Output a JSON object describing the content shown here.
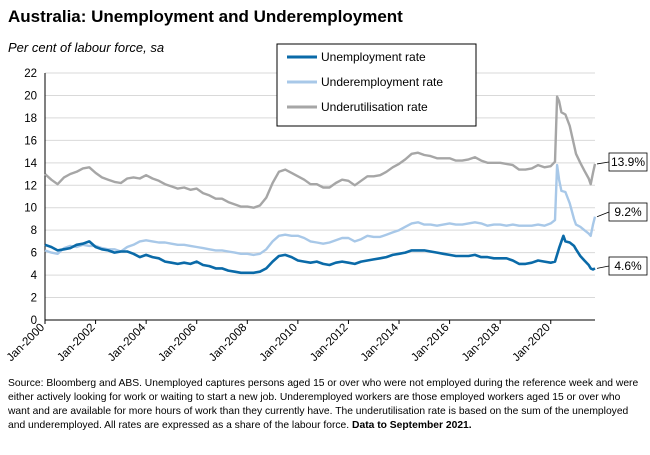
{
  "title": "Australia: Unemployment and Underemployment",
  "subtitle": "Per cent of labour force, sa",
  "source_text": "Source: Bloomberg and ABS. Unemployed captures persons aged 15 or over who were not employed during the reference week and were either actively looking for work or waiting to start a new job.  Underemployed workers are those employed workers aged 15 or over who want and are available for more hours of work than they currently have.  The underutilisation rate is based on the sum of the unemployed and underemployed. All rates are expressed as a share of the labour force.",
  "source_bold": "Data to September 2021.",
  "chart_data": {
    "type": "line",
    "title": "Australia: Unemployment and Underemployment",
    "ylabel": "Per cent of labour force, sa",
    "ylim": [
      0,
      22
    ],
    "yticks": [
      "0",
      "2",
      "4",
      "6",
      "8",
      "10",
      "12",
      "14",
      "16",
      "18",
      "20",
      "22"
    ],
    "xlim": [
      2000.0,
      2021.75
    ],
    "xticks": [
      {
        "x": 2000,
        "label": "Jan-2000"
      },
      {
        "x": 2002,
        "label": "Jan-2002"
      },
      {
        "x": 2004,
        "label": "Jan-2004"
      },
      {
        "x": 2006,
        "label": "Jan-2006"
      },
      {
        "x": 2008,
        "label": "Jan-2008"
      },
      {
        "x": 2010,
        "label": "Jan-2010"
      },
      {
        "x": 2012,
        "label": "Jan-2012"
      },
      {
        "x": 2014,
        "label": "Jan-2014"
      },
      {
        "x": 2016,
        "label": "Jan-2016"
      },
      {
        "x": 2018,
        "label": "Jan-2018"
      },
      {
        "x": 2020,
        "label": "Jan-2020"
      }
    ],
    "grid": true,
    "legend": "top-center",
    "series": [
      {
        "name": "Unemployment rate",
        "color": "#0a6aa8",
        "end_label": "4.6%",
        "points": [
          [
            2000.0,
            6.7
          ],
          [
            2000.25,
            6.5
          ],
          [
            2000.5,
            6.2
          ],
          [
            2000.75,
            6.3
          ],
          [
            2001.0,
            6.4
          ],
          [
            2001.25,
            6.7
          ],
          [
            2001.5,
            6.8
          ],
          [
            2001.75,
            7.0
          ],
          [
            2002.0,
            6.5
          ],
          [
            2002.25,
            6.3
          ],
          [
            2002.5,
            6.2
          ],
          [
            2002.75,
            6.0
          ],
          [
            2003.0,
            6.1
          ],
          [
            2003.25,
            6.1
          ],
          [
            2003.5,
            5.9
          ],
          [
            2003.75,
            5.6
          ],
          [
            2004.0,
            5.8
          ],
          [
            2004.25,
            5.6
          ],
          [
            2004.5,
            5.5
          ],
          [
            2004.75,
            5.2
          ],
          [
            2005.0,
            5.1
          ],
          [
            2005.25,
            5.0
          ],
          [
            2005.5,
            5.1
          ],
          [
            2005.75,
            5.0
          ],
          [
            2006.0,
            5.2
          ],
          [
            2006.25,
            4.9
          ],
          [
            2006.5,
            4.8
          ],
          [
            2006.75,
            4.6
          ],
          [
            2007.0,
            4.6
          ],
          [
            2007.25,
            4.4
          ],
          [
            2007.5,
            4.3
          ],
          [
            2007.75,
            4.2
          ],
          [
            2008.0,
            4.2
          ],
          [
            2008.25,
            4.2
          ],
          [
            2008.5,
            4.3
          ],
          [
            2008.75,
            4.6
          ],
          [
            2009.0,
            5.2
          ],
          [
            2009.25,
            5.7
          ],
          [
            2009.5,
            5.8
          ],
          [
            2009.75,
            5.6
          ],
          [
            2010.0,
            5.3
          ],
          [
            2010.25,
            5.2
          ],
          [
            2010.5,
            5.1
          ],
          [
            2010.75,
            5.2
          ],
          [
            2011.0,
            5.0
          ],
          [
            2011.25,
            4.9
          ],
          [
            2011.5,
            5.1
          ],
          [
            2011.75,
            5.2
          ],
          [
            2012.0,
            5.1
          ],
          [
            2012.25,
            5.0
          ],
          [
            2012.5,
            5.2
          ],
          [
            2012.75,
            5.3
          ],
          [
            2013.0,
            5.4
          ],
          [
            2013.25,
            5.5
          ],
          [
            2013.5,
            5.6
          ],
          [
            2013.75,
            5.8
          ],
          [
            2014.0,
            5.9
          ],
          [
            2014.25,
            6.0
          ],
          [
            2014.5,
            6.2
          ],
          [
            2014.75,
            6.2
          ],
          [
            2015.0,
            6.2
          ],
          [
            2015.25,
            6.1
          ],
          [
            2015.5,
            6.0
          ],
          [
            2015.75,
            5.9
          ],
          [
            2016.0,
            5.8
          ],
          [
            2016.25,
            5.7
          ],
          [
            2016.5,
            5.7
          ],
          [
            2016.75,
            5.7
          ],
          [
            2017.0,
            5.8
          ],
          [
            2017.25,
            5.6
          ],
          [
            2017.5,
            5.6
          ],
          [
            2017.75,
            5.5
          ],
          [
            2018.0,
            5.5
          ],
          [
            2018.25,
            5.5
          ],
          [
            2018.5,
            5.3
          ],
          [
            2018.75,
            5.0
          ],
          [
            2019.0,
            5.0
          ],
          [
            2019.25,
            5.1
          ],
          [
            2019.5,
            5.3
          ],
          [
            2019.75,
            5.2
          ],
          [
            2020.0,
            5.1
          ],
          [
            2020.17,
            5.2
          ],
          [
            2020.33,
            6.4
          ],
          [
            2020.42,
            7.0
          ],
          [
            2020.5,
            7.5
          ],
          [
            2020.58,
            7.0
          ],
          [
            2020.75,
            6.9
          ],
          [
            2020.92,
            6.6
          ],
          [
            2021.0,
            6.3
          ],
          [
            2021.17,
            5.7
          ],
          [
            2021.33,
            5.3
          ],
          [
            2021.5,
            4.9
          ],
          [
            2021.58,
            4.6
          ],
          [
            2021.67,
            4.5
          ],
          [
            2021.75,
            4.6
          ]
        ]
      },
      {
        "name": "Underemployment rate",
        "color": "#a8c8e8",
        "end_label": "9.2%",
        "points": [
          [
            2000.0,
            6.2
          ],
          [
            2000.25,
            6.0
          ],
          [
            2000.5,
            5.9
          ],
          [
            2000.75,
            6.4
          ],
          [
            2001.0,
            6.6
          ],
          [
            2001.25,
            6.5
          ],
          [
            2001.5,
            6.7
          ],
          [
            2001.75,
            6.6
          ],
          [
            2002.0,
            6.6
          ],
          [
            2002.25,
            6.4
          ],
          [
            2002.5,
            6.3
          ],
          [
            2002.75,
            6.3
          ],
          [
            2003.0,
            6.1
          ],
          [
            2003.25,
            6.5
          ],
          [
            2003.5,
            6.7
          ],
          [
            2003.75,
            7.0
          ],
          [
            2004.0,
            7.1
          ],
          [
            2004.25,
            7.0
          ],
          [
            2004.5,
            6.9
          ],
          [
            2004.75,
            6.9
          ],
          [
            2005.0,
            6.8
          ],
          [
            2005.25,
            6.7
          ],
          [
            2005.5,
            6.7
          ],
          [
            2005.75,
            6.6
          ],
          [
            2006.0,
            6.5
          ],
          [
            2006.25,
            6.4
          ],
          [
            2006.5,
            6.3
          ],
          [
            2006.75,
            6.2
          ],
          [
            2007.0,
            6.2
          ],
          [
            2007.25,
            6.1
          ],
          [
            2007.5,
            6.0
          ],
          [
            2007.75,
            5.9
          ],
          [
            2008.0,
            5.9
          ],
          [
            2008.25,
            5.8
          ],
          [
            2008.5,
            5.9
          ],
          [
            2008.75,
            6.3
          ],
          [
            2009.0,
            7.0
          ],
          [
            2009.25,
            7.5
          ],
          [
            2009.5,
            7.6
          ],
          [
            2009.75,
            7.5
          ],
          [
            2010.0,
            7.5
          ],
          [
            2010.25,
            7.3
          ],
          [
            2010.5,
            7.0
          ],
          [
            2010.75,
            6.9
          ],
          [
            2011.0,
            6.8
          ],
          [
            2011.25,
            6.9
          ],
          [
            2011.5,
            7.1
          ],
          [
            2011.75,
            7.3
          ],
          [
            2012.0,
            7.3
          ],
          [
            2012.25,
            7.0
          ],
          [
            2012.5,
            7.2
          ],
          [
            2012.75,
            7.5
          ],
          [
            2013.0,
            7.4
          ],
          [
            2013.25,
            7.4
          ],
          [
            2013.5,
            7.6
          ],
          [
            2013.75,
            7.8
          ],
          [
            2014.0,
            8.0
          ],
          [
            2014.25,
            8.3
          ],
          [
            2014.5,
            8.6
          ],
          [
            2014.75,
            8.7
          ],
          [
            2015.0,
            8.5
          ],
          [
            2015.25,
            8.5
          ],
          [
            2015.5,
            8.4
          ],
          [
            2015.75,
            8.5
          ],
          [
            2016.0,
            8.6
          ],
          [
            2016.25,
            8.5
          ],
          [
            2016.5,
            8.5
          ],
          [
            2016.75,
            8.6
          ],
          [
            2017.0,
            8.7
          ],
          [
            2017.25,
            8.6
          ],
          [
            2017.5,
            8.4
          ],
          [
            2017.75,
            8.5
          ],
          [
            2018.0,
            8.5
          ],
          [
            2018.25,
            8.4
          ],
          [
            2018.5,
            8.5
          ],
          [
            2018.75,
            8.4
          ],
          [
            2019.0,
            8.4
          ],
          [
            2019.25,
            8.4
          ],
          [
            2019.5,
            8.5
          ],
          [
            2019.75,
            8.4
          ],
          [
            2020.0,
            8.6
          ],
          [
            2020.17,
            8.9
          ],
          [
            2020.25,
            13.8
          ],
          [
            2020.33,
            12.5
          ],
          [
            2020.42,
            11.5
          ],
          [
            2020.58,
            11.4
          ],
          [
            2020.75,
            10.4
          ],
          [
            2020.92,
            9.0
          ],
          [
            2021.0,
            8.5
          ],
          [
            2021.17,
            8.3
          ],
          [
            2021.33,
            8.0
          ],
          [
            2021.5,
            7.7
          ],
          [
            2021.58,
            7.5
          ],
          [
            2021.67,
            8.5
          ],
          [
            2021.75,
            9.2
          ]
        ]
      },
      {
        "name": "Underutilisation rate",
        "color": "#a6a6a6",
        "end_label": "13.9%",
        "points": [
          [
            2000.0,
            13.0
          ],
          [
            2000.25,
            12.5
          ],
          [
            2000.5,
            12.1
          ],
          [
            2000.75,
            12.7
          ],
          [
            2001.0,
            13.0
          ],
          [
            2001.25,
            13.2
          ],
          [
            2001.5,
            13.5
          ],
          [
            2001.75,
            13.6
          ],
          [
            2002.0,
            13.1
          ],
          [
            2002.25,
            12.7
          ],
          [
            2002.5,
            12.5
          ],
          [
            2002.75,
            12.3
          ],
          [
            2003.0,
            12.2
          ],
          [
            2003.25,
            12.6
          ],
          [
            2003.5,
            12.7
          ],
          [
            2003.75,
            12.6
          ],
          [
            2004.0,
            12.9
          ],
          [
            2004.25,
            12.6
          ],
          [
            2004.5,
            12.4
          ],
          [
            2004.75,
            12.1
          ],
          [
            2005.0,
            11.9
          ],
          [
            2005.25,
            11.7
          ],
          [
            2005.5,
            11.8
          ],
          [
            2005.75,
            11.6
          ],
          [
            2006.0,
            11.7
          ],
          [
            2006.25,
            11.3
          ],
          [
            2006.5,
            11.1
          ],
          [
            2006.75,
            10.8
          ],
          [
            2007.0,
            10.8
          ],
          [
            2007.25,
            10.5
          ],
          [
            2007.5,
            10.3
          ],
          [
            2007.75,
            10.1
          ],
          [
            2008.0,
            10.1
          ],
          [
            2008.25,
            10.0
          ],
          [
            2008.5,
            10.2
          ],
          [
            2008.75,
            10.9
          ],
          [
            2009.0,
            12.2
          ],
          [
            2009.25,
            13.2
          ],
          [
            2009.5,
            13.4
          ],
          [
            2009.75,
            13.1
          ],
          [
            2010.0,
            12.8
          ],
          [
            2010.25,
            12.5
          ],
          [
            2010.5,
            12.1
          ],
          [
            2010.75,
            12.1
          ],
          [
            2011.0,
            11.8
          ],
          [
            2011.25,
            11.8
          ],
          [
            2011.5,
            12.2
          ],
          [
            2011.75,
            12.5
          ],
          [
            2012.0,
            12.4
          ],
          [
            2012.25,
            12.0
          ],
          [
            2012.5,
            12.4
          ],
          [
            2012.75,
            12.8
          ],
          [
            2013.0,
            12.8
          ],
          [
            2013.25,
            12.9
          ],
          [
            2013.5,
            13.2
          ],
          [
            2013.75,
            13.6
          ],
          [
            2014.0,
            13.9
          ],
          [
            2014.25,
            14.3
          ],
          [
            2014.5,
            14.8
          ],
          [
            2014.75,
            14.9
          ],
          [
            2015.0,
            14.7
          ],
          [
            2015.25,
            14.6
          ],
          [
            2015.5,
            14.4
          ],
          [
            2015.75,
            14.4
          ],
          [
            2016.0,
            14.4
          ],
          [
            2016.25,
            14.2
          ],
          [
            2016.5,
            14.2
          ],
          [
            2016.75,
            14.3
          ],
          [
            2017.0,
            14.5
          ],
          [
            2017.25,
            14.2
          ],
          [
            2017.5,
            14.0
          ],
          [
            2017.75,
            14.0
          ],
          [
            2018.0,
            14.0
          ],
          [
            2018.25,
            13.9
          ],
          [
            2018.5,
            13.8
          ],
          [
            2018.75,
            13.4
          ],
          [
            2019.0,
            13.4
          ],
          [
            2019.25,
            13.5
          ],
          [
            2019.5,
            13.8
          ],
          [
            2019.75,
            13.6
          ],
          [
            2020.0,
            13.7
          ],
          [
            2020.17,
            14.1
          ],
          [
            2020.25,
            19.9
          ],
          [
            2020.33,
            19.5
          ],
          [
            2020.42,
            18.5
          ],
          [
            2020.58,
            18.3
          ],
          [
            2020.75,
            17.3
          ],
          [
            2020.92,
            15.6
          ],
          [
            2021.0,
            14.8
          ],
          [
            2021.17,
            14.0
          ],
          [
            2021.33,
            13.3
          ],
          [
            2021.5,
            12.6
          ],
          [
            2021.58,
            12.1
          ],
          [
            2021.67,
            13.1
          ],
          [
            2021.75,
            13.9
          ]
        ]
      }
    ]
  }
}
